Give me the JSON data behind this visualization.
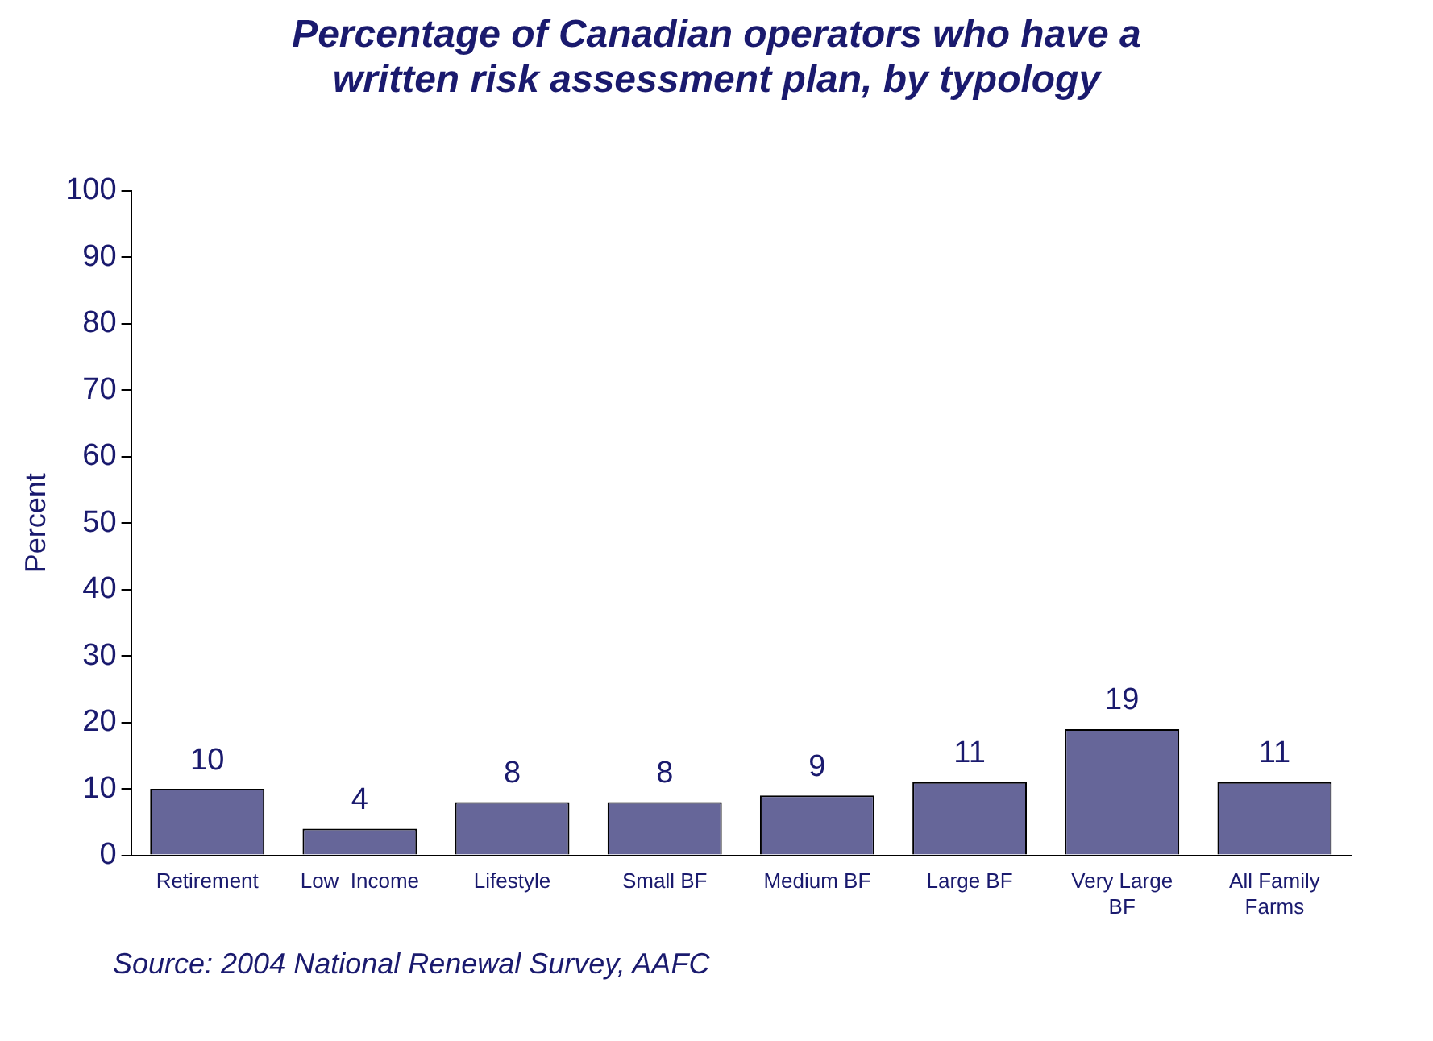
{
  "chart_data": {
    "type": "bar",
    "title": "Percentage of Canadian operators who have a written risk assessment plan, by typology",
    "ylabel": "Percent",
    "categories": [
      "Retirement",
      "Low  Income",
      "Lifestyle",
      "Small BF",
      "Medium BF",
      "Large BF",
      "Very Large BF",
      "All Family Farms"
    ],
    "values": [
      10,
      4,
      8,
      8,
      9,
      11,
      19,
      11
    ],
    "color": "#666699",
    "data_labels": true,
    "ylim": [
      0,
      100
    ],
    "yticks": [
      0,
      10,
      20,
      30,
      40,
      50,
      60,
      70,
      80,
      90,
      100
    ],
    "grid": false,
    "legend": false,
    "annotations": [
      "Source: 2004 National Renewal Survey, AAFC"
    ]
  }
}
